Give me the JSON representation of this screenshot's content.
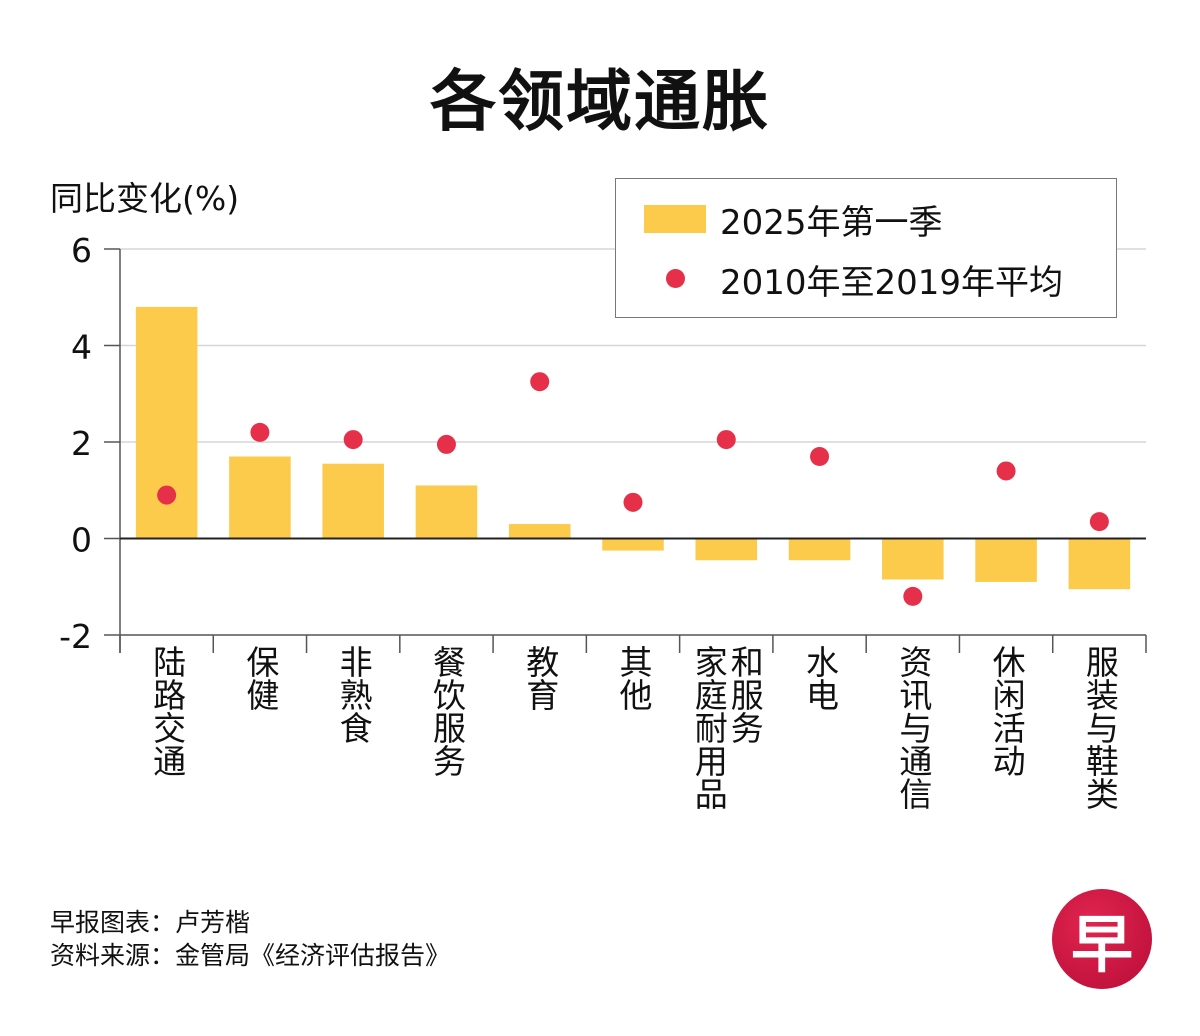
{
  "chart_data": {
    "type": "bar",
    "title": "各领域通胀",
    "ylabel": "同比变化(%)",
    "xlabel": "",
    "ylim": [
      -2,
      6
    ],
    "yticks": [
      6,
      4,
      2,
      0,
      -2
    ],
    "grid": true,
    "legend_position": "top-right",
    "categories": [
      "陆路交通",
      "保健",
      "非熟食",
      "餐饮服务",
      "教育",
      "其他",
      "家庭耐用品和服务",
      "水电",
      "资讯与通信",
      "休闲活动",
      "服装与鞋类"
    ],
    "category_label_columns": [
      [
        "陆路交通"
      ],
      [
        "保健"
      ],
      [
        "非熟食"
      ],
      [
        "餐饮服务"
      ],
      [
        "教育"
      ],
      [
        "其他"
      ],
      [
        "家庭耐用品",
        "和服务"
      ],
      [
        "水电"
      ],
      [
        "资讯与通信"
      ],
      [
        "休闲活动"
      ],
      [
        "服装与鞋类"
      ]
    ],
    "series": [
      {
        "name": "2025年第一季",
        "kind": "bar",
        "color": "#fdcb4b",
        "values": [
          4.8,
          1.7,
          1.55,
          1.1,
          0.3,
          -0.25,
          -0.45,
          -0.45,
          -0.85,
          -0.9,
          -1.05
        ]
      },
      {
        "name": "2010年至2019年平均",
        "kind": "dot",
        "color": "#e6304a",
        "values": [
          0.9,
          2.2,
          2.05,
          1.95,
          3.25,
          0.75,
          2.05,
          1.7,
          -1.2,
          1.4,
          0.35
        ]
      }
    ]
  },
  "footer": {
    "credit": "早报图表：卢芳楷",
    "source": "资料来源：金管局《经济评估报告》"
  },
  "logo": {
    "glyph": "早",
    "color": "#c8143f"
  }
}
